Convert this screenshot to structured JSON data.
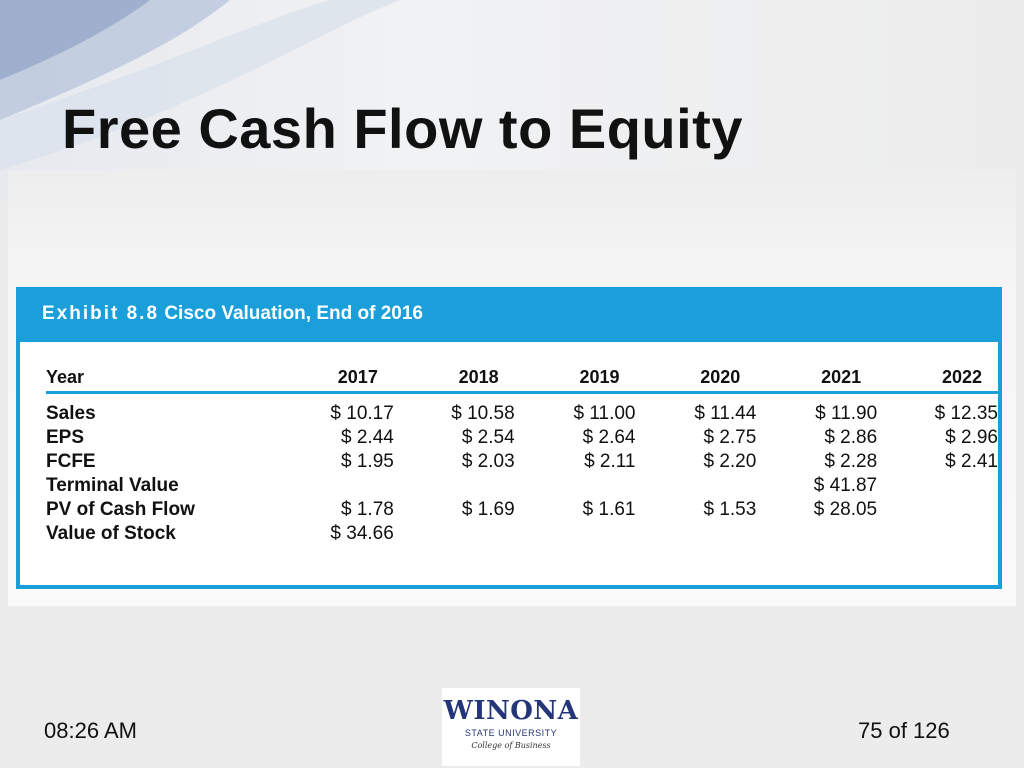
{
  "slide": {
    "title": "Free Cash Flow to Equity"
  },
  "exhibit": {
    "label": "Exhibit 8.8",
    "caption": "Cisco Valuation, End of 2016",
    "year_label": "Year",
    "years": [
      "2017",
      "2018",
      "2019",
      "2020",
      "2021",
      "2022"
    ],
    "rows": [
      {
        "label": "Sales",
        "values": [
          "$ 10.17",
          "$ 10.58",
          "$ 11.00",
          "$ 11.44",
          "$ 11.90",
          "$ 12.35"
        ]
      },
      {
        "label": "EPS",
        "values": [
          "$  2.44",
          "$  2.54",
          "$  2.64",
          "$  2.75",
          "$  2.86",
          "$  2.96"
        ]
      },
      {
        "label": "FCFE",
        "values": [
          "$  1.95",
          "$  2.03",
          "$  2.11",
          "$  2.20",
          "$  2.28",
          "$  2.41"
        ]
      },
      {
        "label": "Terminal Value",
        "values": [
          "",
          "",
          "",
          "",
          "$ 41.87",
          ""
        ]
      },
      {
        "label": "PV of Cash Flow",
        "values": [
          "$  1.78",
          "$  1.69",
          "$  1.61",
          "$  1.53",
          "$ 28.05",
          ""
        ]
      },
      {
        "label": "Value of Stock",
        "values": [
          "$ 34.66",
          "",
          "",
          "",
          "",
          ""
        ]
      }
    ]
  },
  "footer": {
    "time": "08:26 AM",
    "page": "75 of 126"
  },
  "logo": {
    "word": "WINONA",
    "sub": "STATE UNIVERSITY",
    "college": "College of Business"
  },
  "colors": {
    "accent": "#1a9fdb",
    "brand": "#24357a"
  }
}
